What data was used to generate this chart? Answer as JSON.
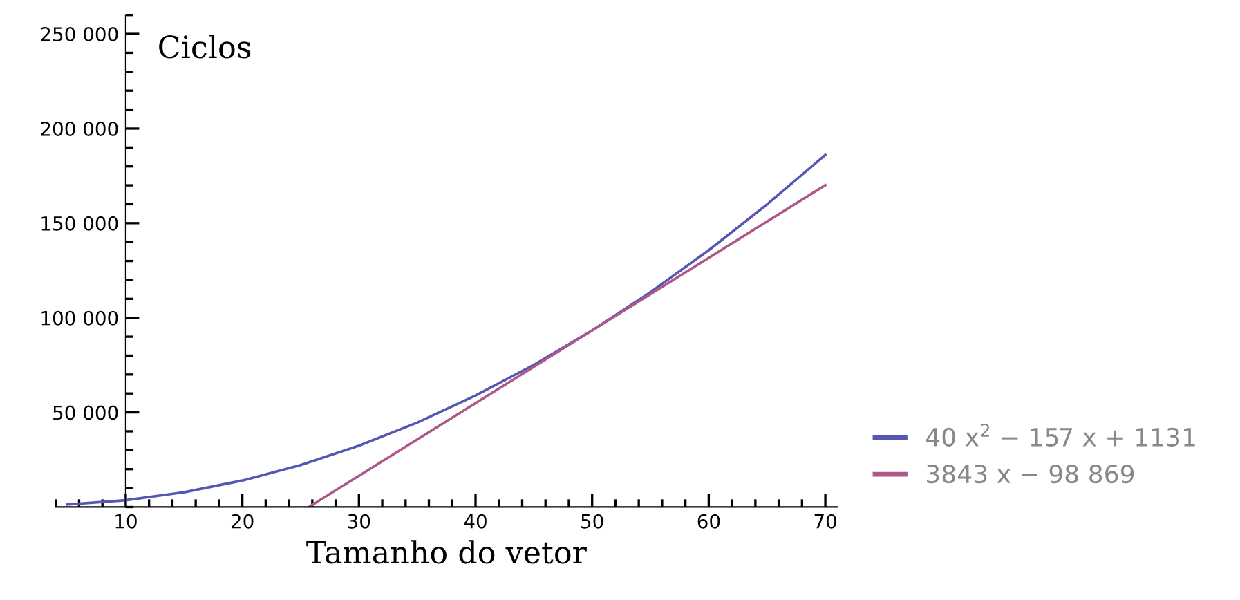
{
  "chart_data": {
    "type": "line",
    "ylabel": "Ciclos",
    "xlabel": "Tamanho do vetor",
    "xlim": [
      4,
      71
    ],
    "ylim": [
      0,
      260000
    ],
    "xticks": [
      10,
      20,
      30,
      40,
      50,
      60,
      70
    ],
    "yticks": [
      {
        "value": 50000,
        "label": "50 000"
      },
      {
        "value": 100000,
        "label": "100 000"
      },
      {
        "value": 150000,
        "label": "150 000"
      },
      {
        "value": 200000,
        "label": "200 000"
      },
      {
        "value": 250000,
        "label": "250 000"
      }
    ],
    "grid": false,
    "legend": "right",
    "marker": "none",
    "line_style": "solid",
    "series": [
      {
        "name": "40 x$^{2}$ − 157 x + 1131",
        "color": "#5656b4",
        "x": [
          5,
          10,
          15,
          20,
          25,
          30,
          35,
          40,
          45,
          50,
          55,
          60,
          65,
          70
        ],
        "values": [
          1300,
          3600,
          7800,
          14000,
          22200,
          32400,
          44600,
          58900,
          75100,
          93300,
          113500,
          135700,
          159900,
          186100
        ]
      },
      {
        "name": "3843 x − 98 869",
        "color": "#b0578a",
        "x": [
          25.7,
          70
        ],
        "values": [
          0,
          170100
        ]
      }
    ]
  }
}
